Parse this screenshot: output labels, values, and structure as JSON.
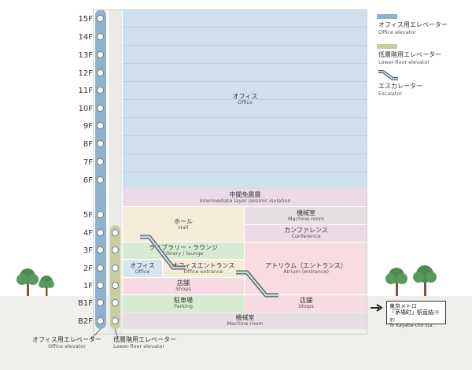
{
  "floors": [
    "15F",
    "14F",
    "13F",
    "12F",
    "11F",
    "10F",
    "9F",
    "8F",
    "7F",
    "6F",
    "5F",
    "4F",
    "3F",
    "2F",
    "1F",
    "B1F",
    "B2F"
  ],
  "zones": {
    "office": {
      "ja": "オフィス",
      "en": "Office"
    },
    "seismic": {
      "ja": "中間免震層",
      "en": "Intermediate layer seismic isolation"
    },
    "hall": {
      "ja": "ホール",
      "en": "Hall"
    },
    "machine_4f": {
      "ja": "機械室",
      "en": "Machine room"
    },
    "conference": {
      "ja": "カンファレンス",
      "en": "Conference"
    },
    "library": {
      "ja": "ライブラリー・ラウンジ",
      "en": "Library / lounge"
    },
    "atrium": {
      "ja": "アトリウム（エントランス）",
      "en": "Atrium (entrance)"
    },
    "office_2f": {
      "ja": "オフィス",
      "en": "Office"
    },
    "office_entrance": {
      "ja": "オフィスエントランス",
      "en": "Office entrance"
    },
    "shops_1f": {
      "ja": "店舗",
      "en": "Shops"
    },
    "parking": {
      "ja": "駐車場",
      "en": "Parking"
    },
    "shops_b1f": {
      "ja": "店舗",
      "en": "Shops"
    },
    "machine_b2f": {
      "ja": "機械室",
      "en": "Machine room"
    }
  },
  "legend": {
    "office_elevator": {
      "ja": "オフィス用エレベーター",
      "en": "Office elevator",
      "color": "#8fb1cb"
    },
    "low_elevator": {
      "ja": "低層階用エレベーター",
      "en": "Lower-floor elevator",
      "color": "#c8cc9f"
    },
    "escalator": {
      "ja": "エスカレーター",
      "en": "Escalator"
    }
  },
  "bottom_labels": {
    "office_elevator": {
      "ja": "オフィス用エレベーター",
      "en": "Office elevator"
    },
    "low_elevator": {
      "ja": "低層階用エレベーター",
      "en": "Lower-floor elevator"
    }
  },
  "metro": {
    "line1": "東京メトロ",
    "line2": "「茅場町」駅直結",
    "note": "(予定)",
    "en": "To Kayaba-cho sta."
  }
}
